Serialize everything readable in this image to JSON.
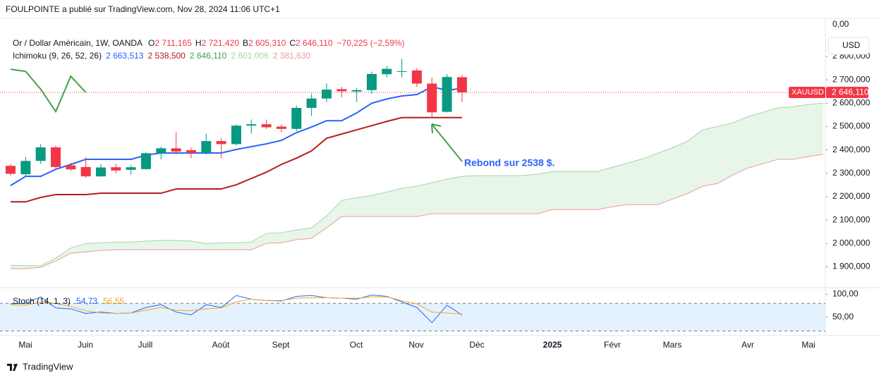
{
  "header": {
    "publisher": "FOULPOINTE a publié sur TradingView.com, Nov 28, 2024 11:06 UTC+1",
    "brand": "TradingView"
  },
  "chart_data": {
    "type": "candlestick",
    "title": "Or / Dollar Américain, 1W, OANDA",
    "ohlc_legend": [
      {
        "key": "O",
        "value": "2 711,165"
      },
      {
        "key": "H",
        "value": "2 721,420"
      },
      {
        "key": "B",
        "value": "2 605,310"
      },
      {
        "key": "C",
        "value": "2 646,110"
      }
    ],
    "change": "−70,225 (−2,59%)",
    "open": [
      2332,
      2296,
      2353,
      2411,
      2334,
      2327,
      2287,
      2326,
      2315,
      2318,
      2386,
      2407,
      2399,
      2387,
      2438,
      2425,
      2504,
      2510,
      2500,
      2490,
      2580,
      2620,
      2660,
      2650,
      2656,
      2724,
      2735,
      2740,
      2684,
      2563,
      2711.165
    ],
    "high": [
      2340,
      2370,
      2425,
      2420,
      2345,
      2370,
      2340,
      2340,
      2335,
      2390,
      2415,
      2475,
      2410,
      2470,
      2450,
      2510,
      2530,
      2530,
      2510,
      2590,
      2640,
      2685,
      2670,
      2665,
      2735,
      2760,
      2790,
      2750,
      2710,
      2725,
      2721.42
    ],
    "low": [
      2290,
      2290,
      2340,
      2320,
      2310,
      2280,
      2285,
      2300,
      2295,
      2315,
      2360,
      2380,
      2365,
      2380,
      2365,
      2420,
      2470,
      2490,
      2475,
      2480,
      2545,
      2605,
      2625,
      2605,
      2640,
      2710,
      2710,
      2670,
      2537,
      2560,
      2605.31
    ],
    "close": [
      2298,
      2353,
      2411,
      2327,
      2317,
      2287,
      2325,
      2312,
      2326,
      2386,
      2407,
      2393,
      2387,
      2438,
      2425,
      2504,
      2510,
      2497,
      2490,
      2580,
      2620,
      2658,
      2651,
      2656,
      2725,
      2747,
      2737,
      2684,
      2561,
      2712,
      2646.11
    ],
    "colors": {
      "up": "#089981",
      "down": "#f23645"
    },
    "symbol": "XAUUSD",
    "last_price_label": "2 646,110",
    "currency": "USD",
    "scale_top_label": "0,00",
    "ylim": [
      1820,
      2960
    ],
    "yticks": [
      {
        "value": 1900,
        "label": "1 900,000"
      },
      {
        "value": 2000,
        "label": "2 000,000"
      },
      {
        "value": 2100,
        "label": "2 100,000"
      },
      {
        "value": 2200,
        "label": "2 200,000"
      },
      {
        "value": 2300,
        "label": "2 300,000"
      },
      {
        "value": 2400,
        "label": "2 400,000"
      },
      {
        "value": 2500,
        "label": "2 500,000"
      },
      {
        "value": 2600,
        "label": "2 600,000"
      },
      {
        "value": 2700,
        "label": "2 700,000"
      },
      {
        "value": 2800,
        "label": "2 800,000"
      }
    ],
    "time_labels": [
      "Mai",
      "Juin",
      "Juill",
      "Août",
      "Sept",
      "Oct",
      "Nov",
      "Déc",
      "2025",
      "Févr",
      "Mars",
      "Avr",
      "Mai"
    ],
    "annotation": "Rebond sur 2538 $.",
    "ichimoku": {
      "label": "Ichimoku (9, 26, 52, 26)",
      "cloud_color": "#e8f5e9",
      "lines": [
        {
          "color": "#2962ff",
          "legend": "2 663,513",
          "values": [
            2248,
            2287,
            2287,
            2317,
            2338,
            2360,
            2360,
            2360,
            2360,
            2378,
            2387,
            2387,
            2387,
            2387,
            2387,
            2402,
            2414,
            2426,
            2441,
            2474,
            2498,
            2525,
            2525,
            2558,
            2600,
            2618,
            2631,
            2637,
            2670,
            2655,
            2663.513
          ]
        },
        {
          "color": "#b71c1c",
          "legend": "2 538,500",
          "values": [
            2178,
            2178,
            2197,
            2209,
            2209,
            2209,
            2215,
            2215,
            2215,
            2215,
            2215,
            2233,
            2233,
            2233,
            2233,
            2251,
            2278,
            2305,
            2338,
            2365,
            2396,
            2450,
            2468,
            2486,
            2504,
            2522,
            2538.5,
            2538.5,
            2538.5,
            2538.5,
            2538.5
          ]
        },
        {
          "color": "#43a047",
          "legend": "2 646,110",
          "values": [
            2745,
            2736,
            2660,
            2564,
            2715,
            2646.11
          ]
        },
        {
          "color": "#a5d6a7",
          "legend": "2 601,006",
          "values": [
            1907,
            1905,
            1905,
            1937,
            1980,
            2000,
            2003,
            2006,
            2006,
            2010,
            2013,
            2013,
            2010,
            2000,
            2003,
            2003,
            2006,
            2043,
            2046,
            2058,
            2067,
            2118,
            2184,
            2196,
            2205,
            2220,
            2236,
            2245,
            2260,
            2275,
            2287,
            2290,
            2290,
            2290,
            2290,
            2296,
            2308,
            2308,
            2308,
            2308,
            2326,
            2344,
            2362,
            2386,
            2410,
            2438,
            2486,
            2501,
            2516,
            2543,
            2561,
            2580,
            2585,
            2594,
            2601.006
          ]
        },
        {
          "color": "#ef9a9a",
          "legend": "2 381,630",
          "values": [
            1892,
            1892,
            1898,
            1925,
            1958,
            1964,
            1970,
            1973,
            1973,
            1973,
            1973,
            1973,
            1973,
            1973,
            1973,
            1973,
            1973,
            2000,
            2003,
            2016,
            2022,
            2067,
            2115,
            2115,
            2115,
            2115,
            2115,
            2115,
            2127,
            2127,
            2127,
            2127,
            2127,
            2127,
            2127,
            2127,
            2145,
            2145,
            2145,
            2145,
            2157,
            2166,
            2166,
            2166,
            2190,
            2214,
            2245,
            2257,
            2293,
            2323,
            2341,
            2360,
            2360,
            2372,
            2381.63
          ]
        }
      ]
    },
    "stoch": {
      "label": "Stoch (14, 1, 3)",
      "ylim": [
        10,
        114
      ],
      "yticks": [
        {
          "value": 100,
          "label": "100,00"
        },
        {
          "value": 50,
          "label": "50,00"
        }
      ],
      "bands": [
        20,
        80
      ],
      "band_color": "#e3f2fd",
      "series": [
        {
          "color": "#2962ff",
          "legend": "54,73",
          "values": [
            79,
            80,
            94,
            70,
            68,
            58,
            61,
            58,
            59,
            71,
            77,
            61,
            55,
            77,
            71,
            97,
            89,
            86,
            85,
            95,
            97,
            92,
            91,
            89,
            98,
            95,
            83,
            71,
            38,
            76,
            54.73
          ]
        },
        {
          "color": "#f5a623",
          "legend": "56,55",
          "values": [
            77,
            76,
            83,
            80,
            73,
            64,
            59,
            58,
            59,
            65,
            71,
            65,
            64,
            68,
            70,
            83,
            89,
            86,
            86,
            91,
            92,
            92,
            91,
            91,
            94,
            94,
            86,
            79,
            61,
            59,
            56.55
          ]
        }
      ]
    }
  }
}
